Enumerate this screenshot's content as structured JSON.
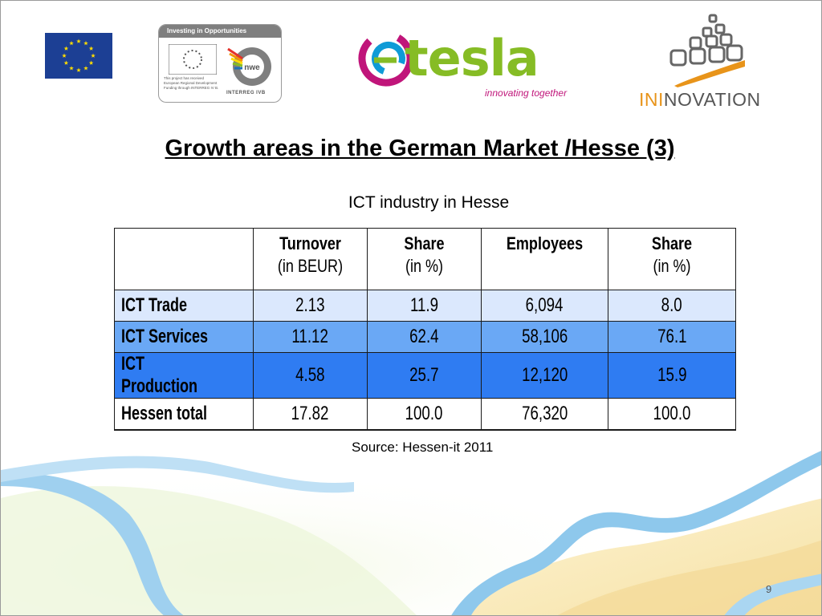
{
  "slide": {
    "title": "Growth areas in the German Market /Hesse (3)",
    "subtitle": "ICT industry in Hesse",
    "source": "Source: Hessen-it 2011",
    "page_number": "9"
  },
  "logos": {
    "eu_flag": "eu-flag-icon",
    "interreg": {
      "header": "Investing in Opportunities",
      "fine_print": "This project has received European Regional Development Funding through INTERREG IV B.",
      "brand": "INTERREG IVB",
      "nwe_label": "nwe"
    },
    "tesla": {
      "word": "tesla",
      "tagline": "innovating together"
    },
    "ininovation": {
      "accent_part": "INI",
      "rest_part": "NOVATION"
    }
  },
  "table": {
    "headers": [
      {
        "line1": "",
        "line2": ""
      },
      {
        "line1": "Turnover",
        "line2": "(in BEUR)"
      },
      {
        "line1": "Share",
        "line2": "(in %)"
      },
      {
        "line1": "Employees",
        "line2": ""
      },
      {
        "line1": "Share",
        "line2": "(in %)"
      }
    ],
    "rows": [
      {
        "label": "ICT Trade",
        "cells": [
          "2.13",
          "11.9",
          "6,094",
          "8.0"
        ]
      },
      {
        "label": "ICT Services",
        "cells": [
          "11.12",
          "62.4",
          "58,106",
          "76.1"
        ]
      },
      {
        "label": "ICT Production",
        "cells": [
          "4.58",
          "25.7",
          "12,120",
          "15.9"
        ]
      },
      {
        "label": "Hessen total",
        "cells": [
          "17.82",
          "100.0",
          "76,320",
          "100.0"
        ]
      }
    ]
  },
  "colors": {
    "row_trade": "#dbe8fd",
    "row_services": "#6aa8f5",
    "row_production": "#2f7cf2",
    "tesla_green": "#86bc25",
    "tesla_magenta": "#c0157a",
    "ini_orange": "#e8941a"
  }
}
